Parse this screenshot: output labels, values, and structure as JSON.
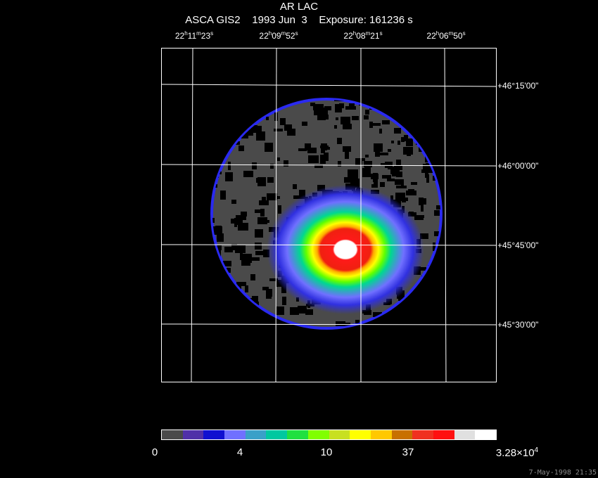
{
  "header": {
    "object": "AR LAC",
    "info_line": "ASCA GIS2    1993 Jun  3    Exposure: 161236 s"
  },
  "ra_axis": [
    {
      "h": "22",
      "m": "11",
      "s": "23"
    },
    {
      "h": "22",
      "m": "09",
      "s": "52"
    },
    {
      "h": "22",
      "m": "08",
      "s": "21"
    },
    {
      "h": "22",
      "m": "06",
      "s": "50"
    }
  ],
  "dec_axis": [
    "+46°15'00\"",
    "+46°00'00\"",
    "+45°45'00\"",
    "+45°30'00\""
  ],
  "colorbar": {
    "colors": [
      "#4a4a4a",
      "#5030a8",
      "#1010d0",
      "#7070ff",
      "#3aa0c8",
      "#00c8a0",
      "#20e040",
      "#80ff00",
      "#c8e020",
      "#ffff00",
      "#ffc800",
      "#c87000",
      "#f03020",
      "#ff1010",
      "#e0e0e0",
      "#ffffff"
    ],
    "ticks": [
      {
        "label": "0"
      },
      {
        "label": "4"
      },
      {
        "label": "10"
      },
      {
        "label": "37"
      },
      {
        "label": "3.28×10",
        "exp": "4"
      }
    ]
  },
  "timestamp": "7-May-1998 21:35"
}
